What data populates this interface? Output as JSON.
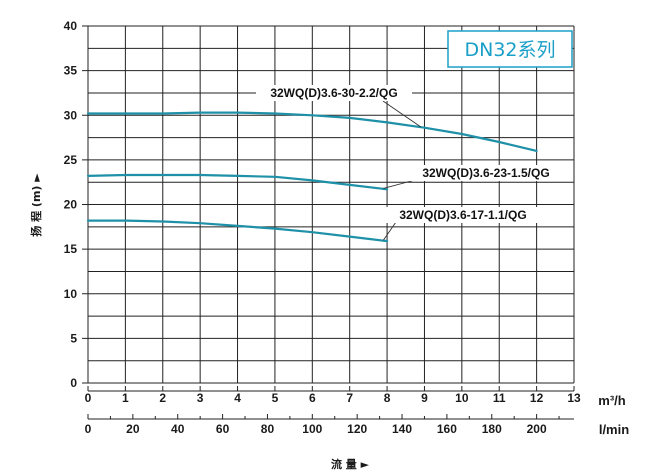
{
  "chart_data": {
    "type": "line",
    "title": "DN32系列",
    "xlabel": "流 量 ►",
    "ylabel": "扬 程 (m) ►",
    "x_unit_top": "m³/h",
    "x_unit_bottom": "l/min",
    "xlim": [
      0,
      13
    ],
    "ylim": [
      0,
      40
    ],
    "x_ticks": [
      "0",
      "1",
      "2",
      "3",
      "4",
      "5",
      "6",
      "7",
      "8",
      "9",
      "10",
      "11",
      "12",
      "13"
    ],
    "x2_ticks": [
      "0",
      "20",
      "40",
      "60",
      "80",
      "100",
      "120",
      "140",
      "160",
      "180",
      "200"
    ],
    "y_ticks": [
      "0",
      "5",
      "10",
      "15",
      "20",
      "25",
      "30",
      "35",
      "40"
    ],
    "grid": true,
    "colors": {
      "curve": "#1e90a8",
      "title_box": "#1aa0c8",
      "grid": "#222222"
    },
    "series": [
      {
        "name": "32WQ(D)3.6-30-2.2/QG",
        "x": [
          0,
          1,
          2,
          3,
          4,
          5,
          6,
          7,
          8,
          9,
          10,
          11,
          12
        ],
        "y": [
          30.2,
          30.2,
          30.2,
          30.3,
          30.3,
          30.2,
          30.0,
          29.7,
          29.2,
          28.6,
          27.9,
          27.0,
          26.0
        ]
      },
      {
        "name": "32WQ(D)3.6-23-1.5/QG",
        "x": [
          0,
          1,
          2,
          3,
          4,
          5,
          6,
          7,
          8
        ],
        "y": [
          23.2,
          23.3,
          23.3,
          23.3,
          23.2,
          23.1,
          22.7,
          22.2,
          21.7
        ]
      },
      {
        "name": "32WQ(D)3.6-17-1.1/QG",
        "x": [
          0,
          1,
          2,
          3,
          4,
          5,
          6,
          7,
          8
        ],
        "y": [
          18.2,
          18.2,
          18.1,
          17.9,
          17.6,
          17.3,
          16.9,
          16.4,
          15.9
        ]
      }
    ]
  }
}
